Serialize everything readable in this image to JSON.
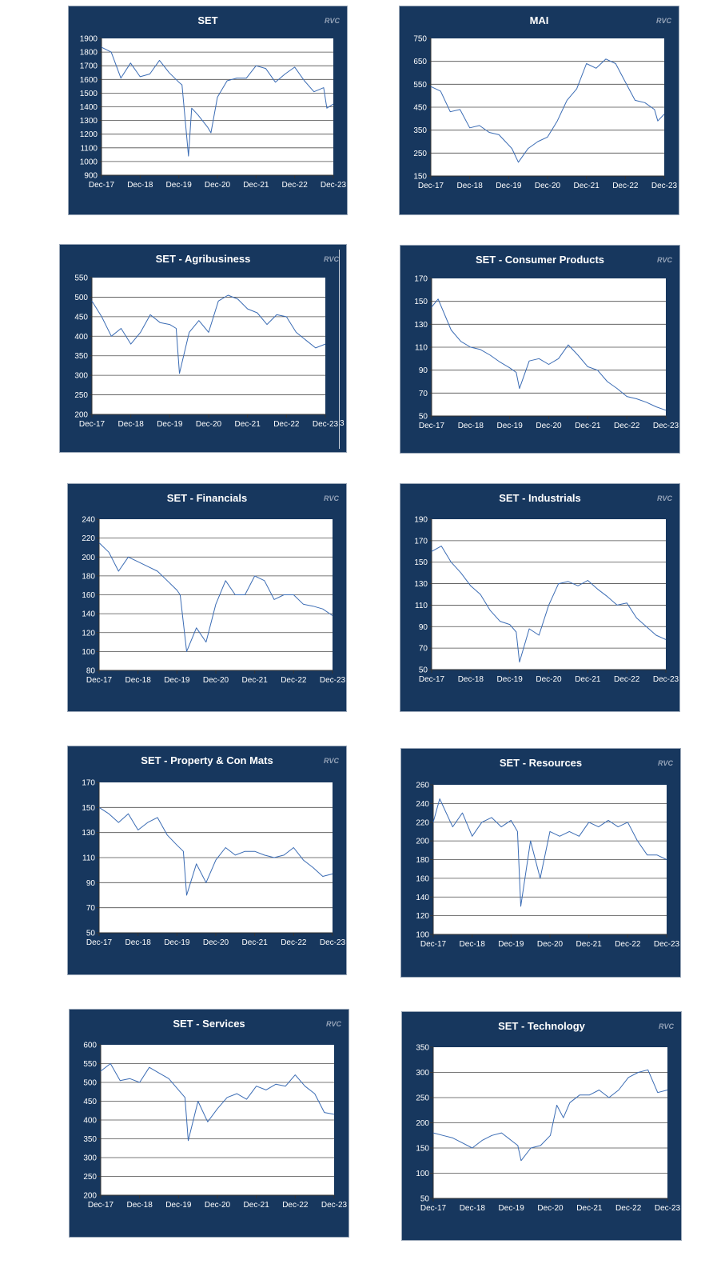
{
  "watermark": "RVC",
  "stray_label": "3",
  "colors": {
    "panel_bg": "#17375e",
    "plot_bg": "#ffffff",
    "line": "#3b6cb4",
    "gridline": "#4d4d4d",
    "tick_text": "#ffffff"
  },
  "chart_data": [
    {
      "type": "line",
      "title": "SET",
      "xlabel": "",
      "ylabel": "",
      "x_ticks": [
        "Dec-17",
        "Dec-18",
        "Dec-19",
        "Dec-20",
        "Dec-21",
        "Dec-22",
        "Dec-23"
      ],
      "y_ticks": [
        "900",
        "1000",
        "1100",
        "1200",
        "1300",
        "1400",
        "1500",
        "1600",
        "1700",
        "1800",
        "1900"
      ],
      "ylim": [
        900,
        1900
      ],
      "grid": true,
      "series": [
        {
          "x": [
            "Dec-17",
            "Mar-18",
            "Jun-18",
            "Sep-18",
            "Dec-18",
            "Mar-19",
            "Jun-19",
            "Sep-19",
            "Dec-19",
            "Jan-20",
            "Mar-20",
            "Apr-20",
            "Jun-20",
            "Sep-20",
            "Oct-20",
            "Dec-20",
            "Mar-21",
            "Jun-21",
            "Sep-21",
            "Dec-21",
            "Mar-22",
            "Jun-22",
            "Sep-22",
            "Dec-22",
            "Mar-23",
            "Jun-23",
            "Sep-23",
            "Oct-23",
            "Dec-23"
          ],
          "values": [
            1835,
            1800,
            1610,
            1720,
            1620,
            1640,
            1740,
            1650,
            1580,
            1560,
            1040,
            1390,
            1340,
            1250,
            1210,
            1470,
            1590,
            1610,
            1610,
            1700,
            1680,
            1580,
            1640,
            1690,
            1590,
            1510,
            1540,
            1390,
            1420
          ]
        }
      ]
    },
    {
      "type": "line",
      "title": "MAI",
      "xlabel": "",
      "ylabel": "",
      "x_ticks": [
        "Dec-17",
        "Dec-18",
        "Dec-19",
        "Dec-20",
        "Dec-21",
        "Dec-22",
        "Dec-23"
      ],
      "y_ticks": [
        "150",
        "250",
        "350",
        "450",
        "550",
        "650",
        "750"
      ],
      "ylim": [
        150,
        750
      ],
      "grid": true,
      "series": [
        {
          "x": [
            "Dec-17",
            "Mar-18",
            "Jun-18",
            "Sep-18",
            "Dec-18",
            "Mar-19",
            "Jun-19",
            "Sep-19",
            "Nov-19",
            "Jan-20",
            "Mar-20",
            "Jun-20",
            "Sep-20",
            "Dec-20",
            "Mar-21",
            "Jun-21",
            "Sep-21",
            "Dec-21",
            "Mar-22",
            "Jun-22",
            "Sep-22",
            "Dec-22",
            "Mar-23",
            "Jun-23",
            "Sep-23",
            "Oct-23",
            "Dec-23"
          ],
          "values": [
            540,
            520,
            430,
            440,
            360,
            370,
            340,
            330,
            300,
            270,
            210,
            270,
            300,
            320,
            390,
            480,
            530,
            640,
            620,
            660,
            640,
            560,
            480,
            470,
            440,
            390,
            420
          ]
        }
      ]
    },
    {
      "type": "line",
      "title": "SET - Agribusiness",
      "xlabel": "",
      "ylabel": "",
      "x_ticks": [
        "Dec-17",
        "Dec-18",
        "Dec-19",
        "Dec-20",
        "Dec-21",
        "Dec-22",
        "Dec-23"
      ],
      "y_ticks": [
        "200",
        "250",
        "300",
        "350",
        "400",
        "450",
        "500",
        "550"
      ],
      "ylim": [
        200,
        550
      ],
      "grid": true,
      "series": [
        {
          "x": [
            "Dec-17",
            "Mar-18",
            "Jun-18",
            "Sep-18",
            "Dec-18",
            "Mar-19",
            "Jun-19",
            "Sep-19",
            "Dec-19",
            "Feb-20",
            "Mar-20",
            "Jun-20",
            "Sep-20",
            "Dec-20",
            "Mar-21",
            "Jun-21",
            "Sep-21",
            "Dec-21",
            "Mar-22",
            "Jun-22",
            "Sep-22",
            "Dec-22",
            "Mar-23",
            "Jun-23",
            "Sep-23",
            "Dec-23"
          ],
          "values": [
            490,
            450,
            400,
            420,
            380,
            410,
            455,
            435,
            430,
            420,
            305,
            410,
            440,
            410,
            490,
            505,
            495,
            470,
            460,
            430,
            455,
            450,
            410,
            390,
            370,
            380
          ]
        }
      ]
    },
    {
      "type": "line",
      "title": "SET - Consumer Products",
      "xlabel": "",
      "ylabel": "",
      "x_ticks": [
        "Dec-17",
        "Dec-18",
        "Dec-19",
        "Dec-20",
        "Dec-21",
        "Dec-22",
        "Dec-23"
      ],
      "y_ticks": [
        "50",
        "70",
        "90",
        "110",
        "130",
        "150",
        "170"
      ],
      "ylim": [
        50,
        170
      ],
      "grid": true,
      "series": [
        {
          "x": [
            "Dec-17",
            "Feb-18",
            "Jun-18",
            "Sep-18",
            "Dec-18",
            "Mar-19",
            "Jun-19",
            "Sep-19",
            "Dec-19",
            "Feb-20",
            "Mar-20",
            "Jun-20",
            "Sep-20",
            "Dec-20",
            "Mar-21",
            "Jun-21",
            "Sep-21",
            "Dec-21",
            "Mar-22",
            "Jun-22",
            "Sep-22",
            "Dec-22",
            "Mar-23",
            "Jun-23",
            "Sep-23",
            "Dec-23"
          ],
          "values": [
            145,
            152,
            125,
            115,
            110,
            108,
            103,
            97,
            92,
            88,
            74,
            98,
            100,
            95,
            100,
            112,
            103,
            93,
            90,
            80,
            74,
            67,
            65,
            62,
            58,
            55
          ]
        }
      ]
    },
    {
      "type": "line",
      "title": "SET - Financials",
      "xlabel": "",
      "ylabel": "",
      "x_ticks": [
        "Dec-17",
        "Dec-18",
        "Dec-19",
        "Dec-20",
        "Dec-21",
        "Dec-22",
        "Dec-23"
      ],
      "y_ticks": [
        "80",
        "100",
        "120",
        "140",
        "160",
        "180",
        "200",
        "220",
        "240"
      ],
      "ylim": [
        80,
        240
      ],
      "grid": true,
      "series": [
        {
          "x": [
            "Dec-17",
            "Mar-18",
            "Jun-18",
            "Sep-18",
            "Dec-18",
            "Mar-19",
            "Jun-19",
            "Sep-19",
            "Dec-19",
            "Jan-20",
            "Mar-20",
            "Jun-20",
            "Sep-20",
            "Dec-20",
            "Mar-21",
            "Jun-21",
            "Sep-21",
            "Dec-21",
            "Mar-22",
            "Jun-22",
            "Sep-22",
            "Dec-22",
            "Mar-23",
            "Jun-23",
            "Sep-23",
            "Dec-23"
          ],
          "values": [
            215,
            205,
            185,
            200,
            195,
            190,
            185,
            175,
            165,
            160,
            100,
            125,
            110,
            150,
            175,
            160,
            160,
            180,
            175,
            155,
            160,
            160,
            150,
            148,
            145,
            138
          ]
        }
      ]
    },
    {
      "type": "line",
      "title": "SET - Industrials",
      "xlabel": "",
      "ylabel": "",
      "x_ticks": [
        "Dec-17",
        "Dec-18",
        "Dec-19",
        "Dec-20",
        "Dec-21",
        "Dec-22",
        "Dec-23"
      ],
      "y_ticks": [
        "50",
        "70",
        "90",
        "110",
        "130",
        "150",
        "170",
        "190"
      ],
      "ylim": [
        50,
        190
      ],
      "grid": true,
      "series": [
        {
          "x": [
            "Dec-17",
            "Mar-18",
            "Jun-18",
            "Sep-18",
            "Dec-18",
            "Mar-19",
            "Jun-19",
            "Sep-19",
            "Dec-19",
            "Feb-20",
            "Mar-20",
            "Jun-20",
            "Sep-20",
            "Dec-20",
            "Mar-21",
            "Jun-21",
            "Sep-21",
            "Dec-21",
            "Mar-22",
            "Jun-22",
            "Sep-22",
            "Dec-22",
            "Mar-23",
            "Jun-23",
            "Sep-23",
            "Dec-23"
          ],
          "values": [
            160,
            165,
            150,
            140,
            128,
            120,
            105,
            95,
            92,
            85,
            57,
            88,
            82,
            110,
            130,
            132,
            128,
            133,
            125,
            118,
            110,
            112,
            98,
            90,
            82,
            78
          ]
        }
      ]
    },
    {
      "type": "line",
      "title": "SET - Property & Con Mats",
      "xlabel": "",
      "ylabel": "",
      "x_ticks": [
        "Dec-17",
        "Dec-18",
        "Dec-19",
        "Dec-20",
        "Dec-21",
        "Dec-22",
        "Dec-23"
      ],
      "y_ticks": [
        "50",
        "70",
        "90",
        "110",
        "130",
        "150",
        "170"
      ],
      "ylim": [
        50,
        170
      ],
      "grid": true,
      "series": [
        {
          "x": [
            "Dec-17",
            "Mar-18",
            "Jun-18",
            "Sep-18",
            "Dec-18",
            "Mar-19",
            "Jun-19",
            "Sep-19",
            "Dec-19",
            "Feb-20",
            "Mar-20",
            "Jun-20",
            "Sep-20",
            "Dec-20",
            "Mar-21",
            "Jun-21",
            "Sep-21",
            "Dec-21",
            "Mar-22",
            "Jun-22",
            "Sep-22",
            "Dec-22",
            "Mar-23",
            "Jun-23",
            "Sep-23",
            "Dec-23"
          ],
          "values": [
            150,
            145,
            138,
            145,
            132,
            138,
            142,
            128,
            120,
            115,
            80,
            105,
            90,
            108,
            118,
            112,
            115,
            115,
            112,
            110,
            112,
            118,
            108,
            102,
            95,
            97
          ]
        }
      ]
    },
    {
      "type": "line",
      "title": "SET - Resources",
      "xlabel": "",
      "ylabel": "",
      "x_ticks": [
        "Dec-17",
        "Dec-18",
        "Dec-19",
        "Dec-20",
        "Dec-21",
        "Dec-22",
        "Dec-23"
      ],
      "y_ticks": [
        "100",
        "120",
        "140",
        "160",
        "180",
        "200",
        "220",
        "240",
        "260"
      ],
      "ylim": [
        100,
        260
      ],
      "grid": true,
      "series": [
        {
          "x": [
            "Dec-17",
            "Feb-18",
            "Jun-18",
            "Sep-18",
            "Dec-18",
            "Mar-19",
            "Jun-19",
            "Sep-19",
            "Dec-19",
            "Feb-20",
            "Mar-20",
            "Jun-20",
            "Sep-20",
            "Dec-20",
            "Mar-21",
            "Jun-21",
            "Sep-21",
            "Dec-21",
            "Mar-22",
            "Jun-22",
            "Sep-22",
            "Dec-22",
            "Mar-23",
            "Jun-23",
            "Sep-23",
            "Dec-23"
          ],
          "values": [
            220,
            245,
            215,
            230,
            205,
            220,
            225,
            215,
            222,
            210,
            130,
            200,
            160,
            210,
            205,
            210,
            205,
            220,
            215,
            222,
            215,
            220,
            200,
            185,
            185,
            180
          ]
        }
      ]
    },
    {
      "type": "line",
      "title": "SET - Services",
      "xlabel": "",
      "ylabel": "",
      "x_ticks": [
        "Dec-17",
        "Dec-18",
        "Dec-19",
        "Dec-20",
        "Dec-21",
        "Dec-22",
        "Dec-23"
      ],
      "y_ticks": [
        "200",
        "250",
        "300",
        "350",
        "400",
        "450",
        "500",
        "550",
        "600"
      ],
      "ylim": [
        200,
        600
      ],
      "grid": true,
      "series": [
        {
          "x": [
            "Dec-17",
            "Mar-18",
            "Jun-18",
            "Sep-18",
            "Dec-18",
            "Mar-19",
            "Jun-19",
            "Sep-19",
            "Dec-19",
            "Feb-20",
            "Mar-20",
            "Jun-20",
            "Sep-20",
            "Dec-20",
            "Mar-21",
            "Jun-21",
            "Sep-21",
            "Dec-21",
            "Mar-22",
            "Jun-22",
            "Sep-22",
            "Dec-22",
            "Mar-23",
            "Jun-23",
            "Sep-23",
            "Dec-23"
          ],
          "values": [
            530,
            550,
            505,
            510,
            500,
            540,
            525,
            510,
            480,
            460,
            345,
            450,
            395,
            430,
            460,
            470,
            455,
            490,
            480,
            495,
            490,
            520,
            490,
            470,
            420,
            415
          ]
        }
      ]
    },
    {
      "type": "line",
      "title": "SET - Technology",
      "xlabel": "",
      "ylabel": "",
      "x_ticks": [
        "Dec-17",
        "Dec-18",
        "Dec-19",
        "Dec-20",
        "Dec-21",
        "Dec-22",
        "Dec-23"
      ],
      "y_ticks": [
        "50",
        "100",
        "150",
        "200",
        "250",
        "300",
        "350"
      ],
      "ylim": [
        50,
        350
      ],
      "grid": true,
      "series": [
        {
          "x": [
            "Dec-17",
            "Mar-18",
            "Jun-18",
            "Sep-18",
            "Dec-18",
            "Mar-19",
            "Jun-19",
            "Sep-19",
            "Dec-19",
            "Feb-20",
            "Mar-20",
            "Jun-20",
            "Sep-20",
            "Dec-20",
            "Feb-21",
            "Apr-21",
            "Jun-21",
            "Sep-21",
            "Dec-21",
            "Mar-22",
            "Jun-22",
            "Sep-22",
            "Dec-22",
            "Mar-23",
            "Jun-23",
            "Sep-23",
            "Dec-23"
          ],
          "values": [
            180,
            175,
            170,
            160,
            150,
            165,
            175,
            180,
            165,
            155,
            125,
            150,
            155,
            175,
            235,
            210,
            240,
            255,
            255,
            265,
            250,
            265,
            290,
            300,
            305,
            260,
            265
          ]
        }
      ]
    }
  ]
}
